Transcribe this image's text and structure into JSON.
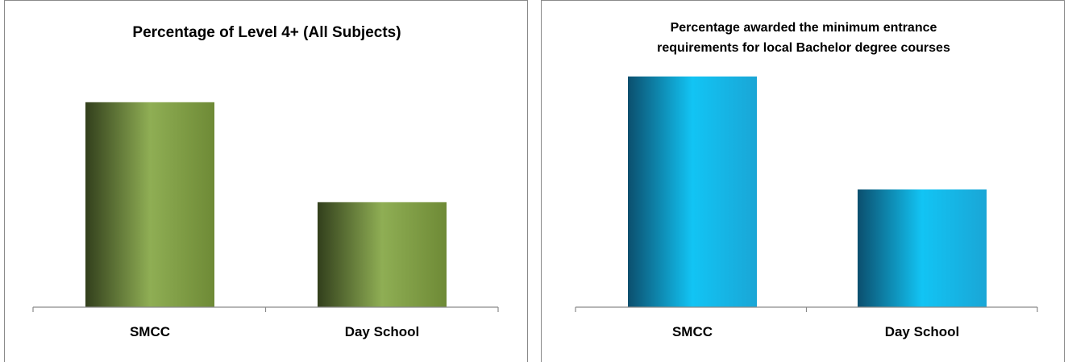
{
  "chart_data": [
    {
      "type": "bar",
      "title": [
        "Percentage of Level 4+ (All Subjects)"
      ],
      "categories": [
        "SMCC",
        "Day School"
      ],
      "values": [
        82,
        42
      ],
      "ylim": [
        0,
        100
      ],
      "xlabel": "",
      "ylabel": "",
      "grid": false,
      "legend": "none",
      "colors": {
        "dark": "#323f1c",
        "mid": "#8fae54",
        "light": "#6e8a36"
      }
    },
    {
      "type": "bar",
      "title": [
        "Percentage awarded the minimum entrance",
        "requirements for local Bachelor degree courses"
      ],
      "categories": [
        "SMCC",
        "Day School"
      ],
      "values": [
        98,
        50
      ],
      "ylim": [
        0,
        100
      ],
      "xlabel": "",
      "ylabel": "",
      "grid": false,
      "legend": "none",
      "colors": {
        "dark": "#0b4f6e",
        "mid": "#12c4f4",
        "light": "#1aa6d6"
      }
    }
  ]
}
